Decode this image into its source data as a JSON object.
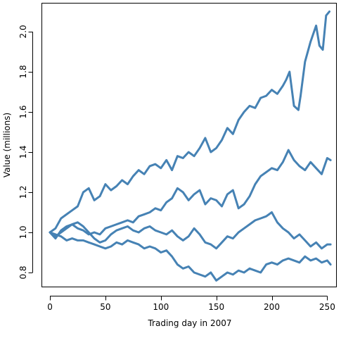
{
  "chart_data": {
    "type": "line",
    "title": "",
    "xlabel": "Trading day in 2007",
    "ylabel": "Value (millions)",
    "xlim": [
      -7,
      258
    ],
    "ylim": [
      0.73,
      2.14
    ],
    "xticks": [
      0,
      50,
      100,
      150,
      200,
      250
    ],
    "yticks": [
      0.8,
      1.0,
      1.2,
      1.4,
      1.6,
      1.8,
      2.0
    ],
    "ytick_labels": [
      "0.8",
      "1.0",
      "1.2",
      "1.4",
      "1.6",
      "1.8",
      "2.0"
    ],
    "grid": false,
    "legend": "none",
    "line_color": "#4682B4",
    "series": [
      {
        "x": [
          0,
          5,
          10,
          15,
          20,
          25,
          30,
          35,
          40,
          45,
          50,
          55,
          60,
          65,
          70,
          75,
          80,
          85,
          90,
          95,
          100,
          105,
          110,
          115,
          120,
          125,
          130,
          135,
          140,
          145,
          150,
          155,
          160,
          165,
          170,
          175,
          180,
          185,
          190,
          195,
          200,
          205,
          210,
          213,
          216,
          220,
          224,
          226,
          230,
          235,
          240,
          243,
          246,
          249,
          252
        ],
        "values": [
          1.0,
          1.02,
          1.07,
          1.09,
          1.11,
          1.13,
          1.2,
          1.22,
          1.16,
          1.18,
          1.24,
          1.21,
          1.23,
          1.26,
          1.24,
          1.28,
          1.31,
          1.29,
          1.33,
          1.34,
          1.32,
          1.36,
          1.31,
          1.38,
          1.37,
          1.4,
          1.38,
          1.42,
          1.47,
          1.4,
          1.42,
          1.46,
          1.52,
          1.49,
          1.56,
          1.6,
          1.63,
          1.62,
          1.67,
          1.68,
          1.71,
          1.69,
          1.73,
          1.76,
          1.8,
          1.63,
          1.61,
          1.68,
          1.85,
          1.95,
          2.03,
          1.93,
          1.91,
          2.08,
          2.1
        ]
      },
      {
        "x": [
          0,
          5,
          10,
          15,
          20,
          25,
          30,
          35,
          40,
          45,
          50,
          55,
          60,
          65,
          70,
          75,
          80,
          85,
          90,
          95,
          100,
          105,
          110,
          115,
          120,
          125,
          130,
          135,
          140,
          145,
          150,
          155,
          160,
          165,
          170,
          175,
          180,
          185,
          190,
          195,
          200,
          205,
          210,
          215,
          220,
          225,
          230,
          235,
          240,
          245,
          250,
          253
        ],
        "values": [
          1.0,
          0.97,
          1.01,
          1.03,
          1.04,
          1.02,
          1.01,
          0.99,
          1.0,
          0.99,
          1.02,
          1.03,
          1.04,
          1.05,
          1.06,
          1.05,
          1.08,
          1.09,
          1.1,
          1.12,
          1.11,
          1.15,
          1.17,
          1.22,
          1.2,
          1.16,
          1.19,
          1.21,
          1.14,
          1.17,
          1.16,
          1.13,
          1.19,
          1.21,
          1.12,
          1.14,
          1.18,
          1.24,
          1.28,
          1.3,
          1.32,
          1.31,
          1.35,
          1.41,
          1.36,
          1.33,
          1.31,
          1.35,
          1.32,
          1.29,
          1.37,
          1.36
        ]
      },
      {
        "x": [
          0,
          5,
          10,
          15,
          20,
          25,
          30,
          35,
          40,
          45,
          50,
          55,
          60,
          65,
          70,
          75,
          80,
          85,
          90,
          95,
          100,
          105,
          110,
          115,
          120,
          125,
          130,
          135,
          140,
          145,
          150,
          155,
          160,
          165,
          170,
          175,
          180,
          185,
          190,
          195,
          200,
          205,
          210,
          215,
          220,
          225,
          230,
          235,
          240,
          245,
          250,
          253
        ],
        "values": [
          1.0,
          0.98,
          1.0,
          1.02,
          1.04,
          1.05,
          1.03,
          1.0,
          0.97,
          0.95,
          0.96,
          0.99,
          1.01,
          1.02,
          1.03,
          1.01,
          1.0,
          1.02,
          1.03,
          1.01,
          1.0,
          0.99,
          1.01,
          0.98,
          0.96,
          0.98,
          1.02,
          0.99,
          0.95,
          0.94,
          0.92,
          0.95,
          0.98,
          0.97,
          1.0,
          1.02,
          1.04,
          1.06,
          1.07,
          1.08,
          1.1,
          1.05,
          1.02,
          1.0,
          0.97,
          0.99,
          0.96,
          0.93,
          0.95,
          0.92,
          0.94,
          0.94
        ]
      },
      {
        "x": [
          0,
          5,
          10,
          15,
          20,
          25,
          30,
          35,
          40,
          45,
          50,
          55,
          60,
          65,
          70,
          75,
          80,
          85,
          90,
          95,
          100,
          105,
          110,
          115,
          120,
          125,
          130,
          135,
          140,
          145,
          150,
          155,
          160,
          165,
          170,
          175,
          180,
          185,
          190,
          195,
          200,
          205,
          210,
          215,
          220,
          225,
          230,
          235,
          240,
          245,
          250,
          253
        ],
        "values": [
          1.0,
          0.99,
          0.98,
          0.96,
          0.97,
          0.96,
          0.96,
          0.95,
          0.94,
          0.93,
          0.92,
          0.93,
          0.95,
          0.94,
          0.96,
          0.95,
          0.94,
          0.92,
          0.93,
          0.92,
          0.9,
          0.91,
          0.88,
          0.84,
          0.82,
          0.83,
          0.8,
          0.79,
          0.78,
          0.8,
          0.76,
          0.78,
          0.8,
          0.79,
          0.81,
          0.8,
          0.82,
          0.81,
          0.8,
          0.84,
          0.85,
          0.84,
          0.86,
          0.87,
          0.86,
          0.85,
          0.88,
          0.86,
          0.87,
          0.85,
          0.86,
          0.84
        ]
      }
    ]
  }
}
